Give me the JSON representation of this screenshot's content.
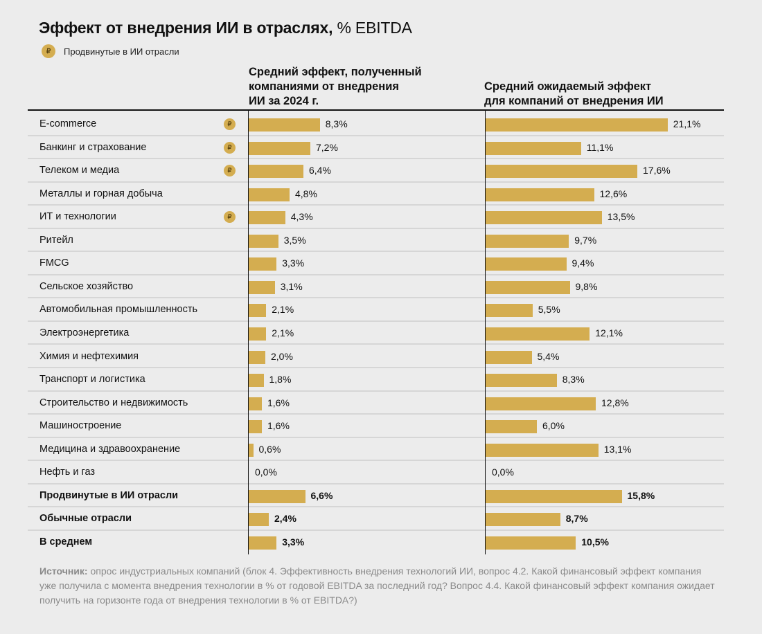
{
  "title": "Эффект от внедрения ИИ в отраслях,",
  "title_unit": "% EBITDA",
  "legend": {
    "label": "Продвинутые в ИИ отрасли",
    "icon": "ai-advanced-coin-icon"
  },
  "colors": {
    "bar": "#d4ad50",
    "background": "#ececec"
  },
  "source": {
    "label": "Источник:",
    "text": " опрос индустриальных компаний (блок 4. Эффективность внедрения технологий ИИ, вопрос 4.2. Какой финансовый эффект компания уже получила с момента внедрения технологии в % от годовой EBITDA за последний год? Вопрос 4.4. Какой финансовый эффект компания ожидает получить на горизонте года от внедрения технологии в % от EBITDA?)"
  },
  "chart_data": {
    "type": "bar",
    "orientation": "horizontal",
    "categories": [
      "E-commerce",
      "Банкинг и страхование",
      "Телеком и медиа",
      "Металлы и горная добыча",
      "ИТ и технологии",
      "Ритейл",
      "FMCG",
      "Сельское хозяйство",
      "Автомобильная промышленность",
      "Электроэнергетика",
      "Химия и нефтехимия",
      "Транспорт и логистика",
      "Строительство и недвижимость",
      "Машиностроение",
      "Медицина и здравоохранение",
      "Нефть и газ",
      "Продвинутые в ИИ отрасли",
      "Обычные отрасли",
      "В среднем"
    ],
    "advanced": [
      true,
      true,
      true,
      false,
      true,
      false,
      false,
      false,
      false,
      false,
      false,
      false,
      false,
      false,
      false,
      false,
      false,
      false,
      false
    ],
    "bold": [
      false,
      false,
      false,
      false,
      false,
      false,
      false,
      false,
      false,
      false,
      false,
      false,
      false,
      false,
      false,
      false,
      true,
      true,
      true
    ],
    "series": [
      {
        "name": "Средний эффект, полученный компаниями от внедрения ИИ за 2024 г.",
        "values": [
          8.3,
          7.2,
          6.4,
          4.8,
          4.3,
          3.5,
          3.3,
          3.1,
          2.1,
          2.1,
          2.0,
          1.8,
          1.6,
          1.6,
          0.6,
          0.0,
          6.6,
          2.4,
          3.3
        ],
        "labels": [
          "8,3%",
          "7,2%",
          "6,4%",
          "4,8%",
          "4,3%",
          "3,5%",
          "3,3%",
          "3,1%",
          "2,1%",
          "2,1%",
          "2,0%",
          "1,8%",
          "1,6%",
          "1,6%",
          "0,6%",
          "0,0%",
          "6,6%",
          "2,4%",
          "3,3%"
        ]
      },
      {
        "name": "Средний ожидаемый эффект для компаний от внедрения ИИ",
        "values": [
          21.1,
          11.1,
          17.6,
          12.6,
          13.5,
          9.7,
          9.4,
          9.8,
          5.5,
          12.1,
          5.4,
          8.3,
          12.8,
          6.0,
          13.1,
          0.0,
          15.8,
          8.7,
          10.5
        ],
        "labels": [
          "21,1%",
          "11,1%",
          "17,6%",
          "12,6%",
          "13,5%",
          "9,7%",
          "9,4%",
          "9,8%",
          "5,5%",
          "12,1%",
          "5,4%",
          "8,3%",
          "12,8%",
          "6,0%",
          "13,1%",
          "0,0%",
          "15,8%",
          "8,7%",
          "10,5%"
        ]
      }
    ],
    "header_lines": [
      [
        "Средний эффект, полученный",
        "компаниями от внедрения",
        "ИИ за 2024 г."
      ],
      [
        "Средний ожидаемый эффект",
        "для компаний от внедрения ИИ"
      ]
    ],
    "xlim": [
      0,
      22
    ],
    "grid": false,
    "legend_position": "top-left"
  }
}
